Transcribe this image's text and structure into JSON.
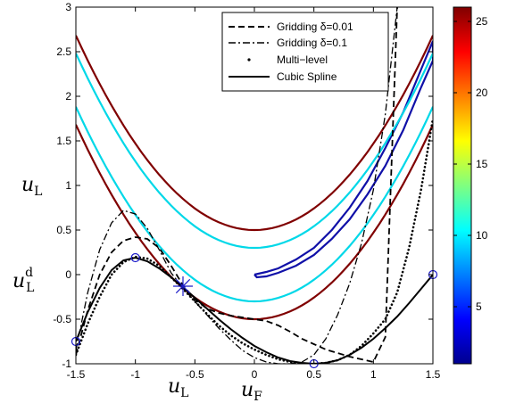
{
  "chart_data": {
    "type": "line",
    "xlim": [
      -1.5,
      1.5
    ],
    "ylim": [
      -1,
      3
    ],
    "x_ticks": [
      "-1.5",
      "-1",
      "-0.5",
      "0",
      "0.5",
      "1",
      "1.5"
    ],
    "y_ticks": [
      "-1",
      "-0.5",
      "0",
      "0.5",
      "1",
      "1.5",
      "2",
      "2.5",
      "3"
    ],
    "colorbar": {
      "range": [
        1,
        26
      ],
      "ticks": [
        "5",
        "10",
        "15",
        "20",
        "25"
      ]
    },
    "annotations": {
      "y_axis_label": "u_L",
      "y_axis_label_main": "u",
      "y_axis_label_sub": "L",
      "ud_label_main": "u",
      "ud_label_sub": "L",
      "ud_label_sup": "d",
      "x_uL_main": "u",
      "x_uL_sub": "L",
      "x_uF_main": "u",
      "x_uF_sub": "F"
    },
    "legend": {
      "placement": "top-right",
      "entries": [
        {
          "label": "Gridding δ=0.01",
          "style": "dashed"
        },
        {
          "label": "Gridding δ=0.1",
          "style": "dash-dot"
        },
        {
          "label": "Multi−level",
          "style": "dotted"
        },
        {
          "label": "Cubic Spline",
          "style": "solid"
        }
      ]
    },
    "contours": [
      {
        "level": 3,
        "color": "#1010a8",
        "closed": true,
        "points": [
          [
            0,
            0
          ],
          [
            0.1,
            0.03
          ],
          [
            0.2,
            0.07
          ],
          [
            0.35,
            0.17
          ],
          [
            0.5,
            0.3
          ],
          [
            0.65,
            0.5
          ],
          [
            0.8,
            0.75
          ],
          [
            0.95,
            1.05
          ],
          [
            1.1,
            1.42
          ],
          [
            1.25,
            1.82
          ],
          [
            1.4,
            2.3
          ],
          [
            1.5,
            2.62
          ],
          [
            1.5,
            2.4
          ],
          [
            1.4,
            2.1
          ],
          [
            1.25,
            1.62
          ],
          [
            1.1,
            1.22
          ],
          [
            0.95,
            0.9
          ],
          [
            0.8,
            0.62
          ],
          [
            0.65,
            0.4
          ],
          [
            0.5,
            0.22
          ],
          [
            0.35,
            0.1
          ],
          [
            0.2,
            0.02
          ],
          [
            0.1,
            -0.02
          ],
          [
            0.02,
            -0.03
          ],
          [
            0,
            0
          ]
        ]
      },
      {
        "level": 11,
        "color": "#00d8e8",
        "parabola": {
          "c": -0.3
        }
      },
      {
        "level": 11,
        "color": "#00d8e8",
        "parabola": {
          "c": 0.3
        }
      },
      {
        "level": 25,
        "color": "#800000",
        "parabola": {
          "c": -0.5
        }
      },
      {
        "level": 25,
        "color": "#800000",
        "parabola": {
          "c": 0.5
        }
      }
    ],
    "series": [
      {
        "name": "Gridding δ=0.01",
        "style": "dashed",
        "x": [
          -1.5,
          -1.4,
          -1.3,
          -1.2,
          -1.1,
          -1.0,
          -0.9,
          -0.8,
          -0.7,
          -0.6,
          -0.5,
          -0.4,
          -0.3,
          -0.2,
          -0.1,
          0,
          0.1,
          0.2,
          0.3,
          0.4,
          0.5,
          0.6,
          0.7,
          0.8,
          0.9,
          1.0,
          1.1,
          1.2
        ],
        "y": [
          -0.9,
          -0.4,
          0.0,
          0.25,
          0.38,
          0.42,
          0.4,
          0.3,
          0.1,
          -0.12,
          -0.28,
          -0.38,
          -0.43,
          -0.46,
          -0.48,
          -0.5,
          -0.52,
          -0.57,
          -0.64,
          -0.72,
          -0.78,
          -0.84,
          -0.88,
          -0.92,
          -0.95,
          -0.98,
          -0.7,
          3.0
        ]
      },
      {
        "name": "Gridding δ=0.1",
        "style": "dash-dot",
        "x": [
          -1.5,
          -1.4,
          -1.3,
          -1.2,
          -1.1,
          -1.0,
          -0.9,
          -0.8,
          -0.7,
          -0.6,
          -0.5,
          -0.4,
          -0.3,
          -0.2,
          -0.1,
          0,
          0.1,
          0.2,
          0.3,
          0.4,
          0.5,
          0.6,
          0.7,
          0.8,
          0.9,
          1.0,
          1.1,
          1.2
        ],
        "y": [
          -0.85,
          -0.2,
          0.28,
          0.58,
          0.72,
          0.68,
          0.52,
          0.28,
          0.02,
          -0.15,
          -0.3,
          -0.45,
          -0.6,
          -0.73,
          -0.85,
          -0.93,
          -0.98,
          -1.0,
          -1.0,
          -0.98,
          -0.9,
          -0.72,
          -0.45,
          -0.1,
          0.35,
          0.95,
          1.8,
          3.0
        ]
      },
      {
        "name": "Multi−level",
        "style": "dotted",
        "x": [
          -1.5,
          -1.4,
          -1.3,
          -1.2,
          -1.1,
          -1.0,
          -0.9,
          -0.8,
          -0.7,
          -0.6,
          -0.5,
          -0.4,
          -0.3,
          -0.2,
          -0.1,
          0,
          0.1,
          0.2,
          0.3,
          0.4,
          0.5,
          0.6,
          0.7,
          0.8,
          0.9,
          1.0,
          1.1,
          1.2,
          1.3,
          1.4,
          1.5
        ],
        "y": [
          -0.9,
          -0.55,
          -0.25,
          0.0,
          0.14,
          0.2,
          0.18,
          0.1,
          -0.03,
          -0.16,
          -0.3,
          -0.44,
          -0.57,
          -0.68,
          -0.77,
          -0.84,
          -0.9,
          -0.95,
          -0.98,
          -1.0,
          -1.0,
          -0.99,
          -0.96,
          -0.9,
          -0.8,
          -0.66,
          -0.5,
          -0.2,
          0.3,
          0.95,
          1.75
        ]
      },
      {
        "name": "Cubic Spline",
        "style": "solid",
        "x": [
          -1.5,
          -1.4,
          -1.3,
          -1.2,
          -1.1,
          -1.0,
          -0.9,
          -0.8,
          -0.7,
          -0.6,
          -0.5,
          -0.4,
          -0.3,
          -0.2,
          -0.1,
          0,
          0.1,
          0.2,
          0.3,
          0.4,
          0.5,
          0.6,
          0.7,
          0.8,
          0.9,
          1.0,
          1.1,
          1.2,
          1.3,
          1.4,
          1.5
        ],
        "y": [
          -0.75,
          -0.42,
          -0.15,
          0.05,
          0.16,
          0.19,
          0.15,
          0.07,
          -0.03,
          -0.14,
          -0.26,
          -0.38,
          -0.5,
          -0.61,
          -0.71,
          -0.8,
          -0.87,
          -0.93,
          -0.97,
          -0.99,
          -1.0,
          -0.99,
          -0.96,
          -0.9,
          -0.82,
          -0.72,
          -0.6,
          -0.47,
          -0.32,
          -0.16,
          0.0
        ]
      }
    ],
    "circle_markers": [
      [
        -1.5,
        -0.75
      ],
      [
        -1.0,
        0.19
      ],
      [
        0.5,
        -1.0
      ],
      [
        1.5,
        0.0
      ]
    ],
    "star_marker": [
      -0.6,
      -0.13
    ]
  }
}
